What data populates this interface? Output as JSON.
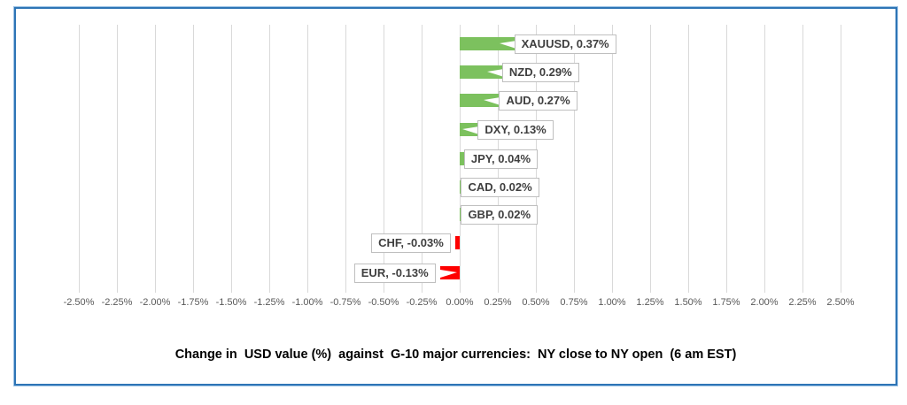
{
  "chart_data": {
    "type": "bar",
    "orientation": "horizontal",
    "title": "Change in  USD value (%)  against  G-10 major currencies:  NY close to NY open  (6 am EST)",
    "categories": [
      "XAUUSD",
      "NZD",
      "AUD",
      "DXY",
      "JPY",
      "CAD",
      "GBP",
      "CHF",
      "EUR"
    ],
    "values": [
      0.37,
      0.29,
      0.27,
      0.13,
      0.04,
      0.02,
      0.02,
      -0.03,
      -0.13
    ],
    "data_labels": [
      "XAUUSD, 0.37%",
      "NZD, 0.29%",
      "AUD, 0.27%",
      "DXY, 0.13%",
      "JPY, 0.04%",
      "CAD, 0.02%",
      "GBP, 0.02%",
      "CHF, -0.03%",
      "EUR, -0.13%"
    ],
    "x_ticks": [
      "-2.50%",
      "-2.25%",
      "-2.00%",
      "-1.75%",
      "-1.50%",
      "-1.25%",
      "-1.00%",
      "-0.75%",
      "-0.50%",
      "-0.25%",
      "0.00%",
      "0.25%",
      "0.50%",
      "0.75%",
      "1.00%",
      "1.25%",
      "1.50%",
      "1.75%",
      "2.00%",
      "2.25%",
      "2.50%"
    ],
    "x_tick_values": [
      -2.5,
      -2.25,
      -2.0,
      -1.75,
      -1.5,
      -1.25,
      -1.0,
      -0.75,
      -0.5,
      -0.25,
      0.0,
      0.25,
      0.5,
      0.75,
      1.0,
      1.25,
      1.5,
      1.75,
      2.0,
      2.25,
      2.5
    ],
    "xlim": [
      -2.5,
      2.5
    ],
    "grid": true,
    "legend": "none",
    "colors": {
      "positive_bar": "#7CC15E",
      "negative_bar": "#FE0000",
      "gridline": "#D9D9D9",
      "frame_border": "#2E75B6",
      "frame_border_outer": "#9DC3E6",
      "label_border": "#BFBFBF",
      "label_text": "#3F3F3F",
      "axis_text": "#595959"
    }
  }
}
